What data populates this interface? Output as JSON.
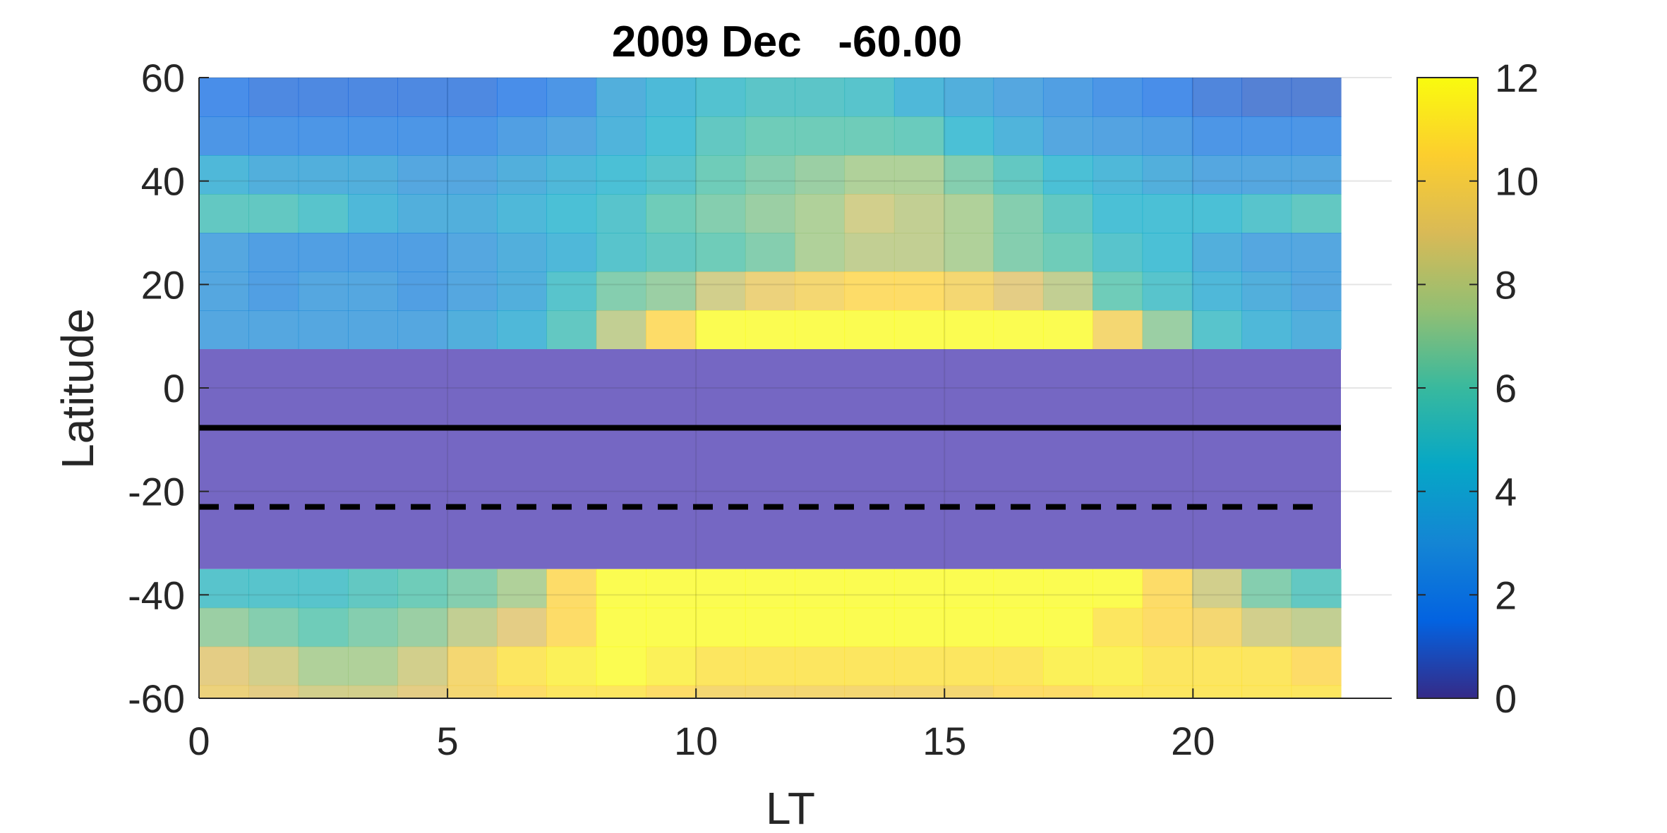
{
  "chart_data": {
    "type": "heatmap",
    "title": "2009 Dec   -60.00",
    "xlabel": "LT",
    "ylabel": "Latitude",
    "xlim": [
      0,
      24
    ],
    "ylim": [
      -60,
      60
    ],
    "x_ticks": [
      "0",
      "5",
      "10",
      "15",
      "20"
    ],
    "y_ticks": [
      "60",
      "40",
      "20",
      "0",
      "-20",
      "-40",
      "-60"
    ],
    "colorbar": {
      "limits": [
        0,
        12
      ],
      "ticks": [
        "12",
        "10",
        "8",
        "6",
        "4",
        "2",
        "0"
      ],
      "colormap": "parula"
    },
    "grid": true,
    "x_centers": [
      0.5,
      1.5,
      2.5,
      3.5,
      4.5,
      5.5,
      6.5,
      7.5,
      8.5,
      9.5,
      10.5,
      11.5,
      12.5,
      13.5,
      14.5,
      15.5,
      16.5,
      17.5,
      18.5,
      19.5,
      20.5,
      21.5,
      22.5
    ],
    "lat_rows": [
      {
        "lat_bottom": 52.5,
        "lat_top": 60,
        "values": [
          1.5,
          1.3,
          1.3,
          1.3,
          1.3,
          1.3,
          1.5,
          2.0,
          3.5,
          4.2,
          4.8,
          5.2,
          5.2,
          5.0,
          4.0,
          3.5,
          3.0,
          2.5,
          2.0,
          1.5,
          1.2,
          1.0,
          1.0
        ]
      },
      {
        "lat_bottom": 45,
        "lat_top": 52.5,
        "values": [
          2.0,
          2.0,
          2.0,
          2.0,
          2.0,
          2.0,
          2.5,
          3.0,
          3.8,
          4.5,
          5.5,
          6.0,
          6.0,
          6.0,
          5.8,
          4.5,
          3.8,
          3.0,
          2.8,
          2.5,
          2.0,
          2.0,
          2.0
        ]
      },
      {
        "lat_bottom": 37.5,
        "lat_top": 45,
        "values": [
          4.0,
          3.5,
          3.5,
          3.5,
          3.0,
          3.0,
          3.5,
          4.0,
          4.5,
          5.0,
          6.0,
          6.5,
          7.0,
          7.5,
          7.5,
          6.5,
          5.5,
          4.5,
          4.0,
          3.5,
          3.0,
          3.0,
          3.0
        ]
      },
      {
        "lat_bottom": 30,
        "lat_top": 37.5,
        "values": [
          5.5,
          5.5,
          5.0,
          4.0,
          3.5,
          3.5,
          4.0,
          4.5,
          5.0,
          6.0,
          6.5,
          7.0,
          7.5,
          8.5,
          8.0,
          7.5,
          6.5,
          5.5,
          4.5,
          4.5,
          4.5,
          5.0,
          5.5
        ]
      },
      {
        "lat_bottom": 22.5,
        "lat_top": 30,
        "values": [
          3.0,
          2.5,
          2.5,
          2.5,
          2.5,
          3.0,
          3.5,
          4.0,
          5.0,
          5.5,
          6.0,
          6.5,
          7.5,
          8.0,
          8.0,
          7.5,
          6.5,
          6.0,
          5.0,
          4.5,
          3.5,
          3.0,
          3.0
        ]
      },
      {
        "lat_bottom": 15,
        "lat_top": 22.5,
        "values": [
          3.0,
          2.5,
          3.0,
          3.0,
          2.5,
          3.0,
          3.5,
          5.0,
          6.5,
          7.0,
          8.5,
          9.5,
          10.0,
          10.5,
          10.5,
          10.0,
          9.0,
          8.0,
          6.0,
          5.0,
          4.0,
          3.5,
          3.0
        ]
      },
      {
        "lat_bottom": 7.5,
        "lat_top": 15,
        "values": [
          3.0,
          3.0,
          3.0,
          3.0,
          3.0,
          3.5,
          4.0,
          5.5,
          8.0,
          10.5,
          12.0,
          12.0,
          12.0,
          12.0,
          12.0,
          12.0,
          12.0,
          12.0,
          10.0,
          7.0,
          5.0,
          4.0,
          3.5
        ]
      },
      {
        "lat_bottom": -42.5,
        "lat_top": -35,
        "values": [
          5.0,
          5.0,
          5.0,
          5.5,
          6.0,
          6.5,
          7.5,
          10.5,
          12.0,
          12.0,
          12.0,
          12.0,
          12.0,
          12.0,
          12.0,
          12.0,
          12.0,
          12.0,
          12.0,
          10.5,
          8.5,
          6.5,
          5.5
        ]
      },
      {
        "lat_bottom": -50,
        "lat_top": -42.5,
        "values": [
          7.0,
          6.5,
          6.0,
          6.5,
          7.0,
          8.0,
          9.0,
          10.5,
          12.0,
          12.0,
          12.0,
          12.0,
          12.0,
          12.0,
          12.0,
          12.0,
          12.0,
          12.0,
          11.0,
          10.5,
          10.0,
          8.5,
          8.0
        ]
      },
      {
        "lat_bottom": -57.5,
        "lat_top": -50,
        "values": [
          9.0,
          8.5,
          7.5,
          7.5,
          8.5,
          10.0,
          11.0,
          11.5,
          12.0,
          11.5,
          11.0,
          11.0,
          11.0,
          11.0,
          11.0,
          11.0,
          11.0,
          11.5,
          11.5,
          11.0,
          11.0,
          11.0,
          10.5
        ]
      },
      {
        "lat_bottom": -60,
        "lat_top": -57.5,
        "values": [
          9.5,
          9.0,
          8.5,
          8.5,
          9.0,
          10.0,
          10.5,
          11.0,
          11.0,
          10.5,
          10.0,
          10.0,
          10.0,
          10.0,
          10.0,
          10.0,
          10.5,
          10.5,
          11.0,
          11.0,
          11.0,
          11.0,
          11.0
        ]
      }
    ],
    "masked_band": {
      "lat_bottom": -35,
      "lat_top": 7.5,
      "color": "#7567c3"
    },
    "lines": [
      {
        "style": "solid",
        "lat": -7.7,
        "color": "#000000"
      },
      {
        "style": "dashed",
        "lat": -23.0,
        "color": "#000000"
      }
    ]
  }
}
